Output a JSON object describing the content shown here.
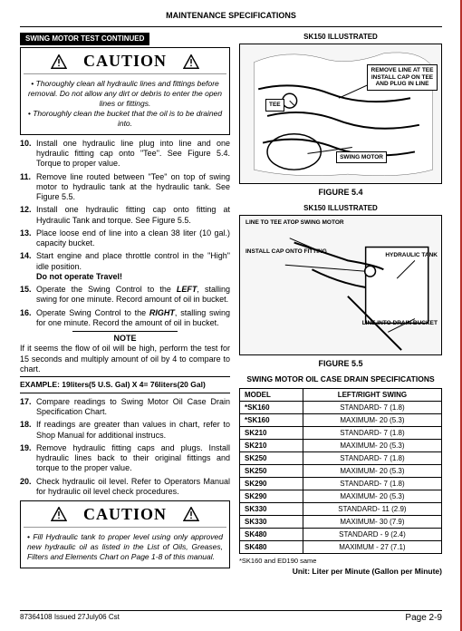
{
  "header": {
    "title": "MAINTENANCE SPECIFICATIONS"
  },
  "section_bar": "SWING MOTOR TEST CONTINUED",
  "caution": {
    "label": "CAUTION",
    "box1": "• Thoroughly clean all hydraulic lines and fittings before removal. Do not allow any dirt or debris to enter the open lines or fittings.\n• Thoroughly clean the bucket that the oil is to be drained into.",
    "box2": "• Fill Hydraulic tank to proper level using only approved new hydraulic oil as listed in the List of Oils, Greases, Filters and Elements Chart on Page 1-8 of this manual."
  },
  "steps1": [
    {
      "n": "10.",
      "t": "Install one hydraulic line plug into line and one hydraulic fitting cap onto \"Tee\". See Figure 5.4. Torque to proper value."
    },
    {
      "n": "11.",
      "t": "Remove line routed between \"Tee\" on top of swing motor to hydraulic tank at the hydraulic  tank. See Figure 5.5."
    },
    {
      "n": "12.",
      "t": "Install one hydraulic fitting cap onto fitting at Hydraulic Tank and torque. See Figure 5.5."
    },
    {
      "n": "13.",
      "t": "Place loose end of line into a clean 38 liter (10 gal.) capacity bucket."
    },
    {
      "n": "14.",
      "t": "Start engine and place throttle control in the \"High\" idle position.\nDo not operate Travel!"
    },
    {
      "n": "15.",
      "t": "Operate the Swing Control to the LEFT, stalling swing for one minute. Record amount of oil in bucket."
    },
    {
      "n": "16.",
      "t": "Operate Swing Control to the RIGHT, stalling swing for one minute. Record the amount of oil in bucket."
    }
  ],
  "note": {
    "label": "NOTE",
    "body": "If it seems the flow of oil will be high, perform the test for 15 seconds and multiply amount of oil by 4 to compare to chart.",
    "example": "EXAMPLE: 19liters(5 U.S. Gal) X 4= 76liters(20 Gal)"
  },
  "steps2": [
    {
      "n": "17.",
      "t": "Compare readings to Swing Motor Oil Case Drain Specification Chart."
    },
    {
      "n": "18.",
      "t": "If readings are greater than values in chart, refer to Shop Manual for additional instrucs."
    },
    {
      "n": "19.",
      "t": "Remove hydraulic fitting caps and plugs. Install hydraulic lines back to their original fittings and torque to the proper value."
    },
    {
      "n": "20.",
      "t": "Check hydraulic oil level. Refer to Operators Manual for hydraulic oil level check procedures."
    }
  ],
  "figures": {
    "illus_label": "SK150 ILLUSTRATED",
    "f54": {
      "caption": "FIGURE 5.4",
      "callouts": {
        "remove_line": "REMOVE LINE AT TEE\nINSTALL CAP ON TEE\nAND PLUG IN LINE",
        "tee": "TEE",
        "swing_motor": "SWING\nMOTOR"
      }
    },
    "f55": {
      "caption": "FIGURE 5.5",
      "callouts": {
        "line_to_tee": "LINE TO TEE\nATOP SWING MOTOR",
        "install_cap": "INSTALL CAP\nONTO FITTING",
        "hyd_tank": "HYDRAULIC\nTANK",
        "line_into_drain": "LINE INTO\nDRAIN BUCKET"
      }
    }
  },
  "spec_table": {
    "title": "SWING MOTOR OIL CASE DRAIN SPECIFICATIONS",
    "headers": [
      "MODEL",
      "LEFT/RIGHT SWING"
    ],
    "rows": [
      [
        "*SK160",
        "STANDARD- 7 (1.8)"
      ],
      [
        "*SK160",
        "MAXIMUM- 20 (5.3)"
      ],
      [
        "SK210",
        "STANDARD- 7 (1.8)"
      ],
      [
        "SK210",
        "MAXIMUM- 20 (5.3)"
      ],
      [
        "SK250",
        "STANDARD- 7 (1.8)"
      ],
      [
        "SK250",
        "MAXIMUM- 20 (5.3)"
      ],
      [
        "SK290",
        "STANDARD- 7 (1.8)"
      ],
      [
        "SK290",
        "MAXIMUM- 20 (5.3)"
      ],
      [
        "SK330",
        "STANDARD- 11 (2.9)"
      ],
      [
        "SK330",
        "MAXIMUM- 30 (7.9)"
      ],
      [
        "SK480",
        "STANDARD - 9 (2.4)"
      ],
      [
        "SK480",
        "MAXIMUM - 27 (7.1)"
      ]
    ],
    "footnote": "*SK160 and ED190 same",
    "unit": "Unit: Liter per Minute (Gallon per Minute)"
  },
  "footer": {
    "left": "87364108     Issued 27July06  Cst",
    "right": "Page 2-9"
  }
}
